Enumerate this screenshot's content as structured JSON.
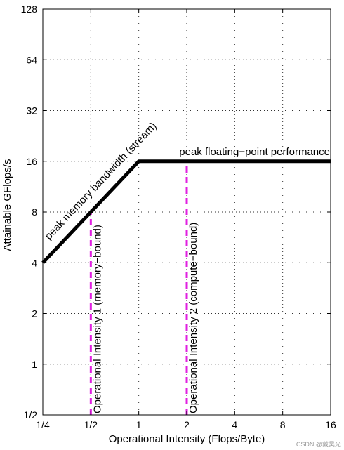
{
  "chart_data": {
    "type": "line",
    "title": "",
    "xlabel": "Operational Intensity (Flops/Byte)",
    "ylabel": "Attainable GFlops/s",
    "xscale": "log2",
    "yscale": "log2",
    "xlim": [
      0.25,
      16
    ],
    "ylim": [
      0.5,
      128
    ],
    "grid": true,
    "x_ticks": [
      {
        "value": 0.25,
        "label": "1/4"
      },
      {
        "value": 0.5,
        "label": "1/2"
      },
      {
        "value": 1,
        "label": "1"
      },
      {
        "value": 2,
        "label": "2"
      },
      {
        "value": 4,
        "label": "4"
      },
      {
        "value": 8,
        "label": "8"
      },
      {
        "value": 16,
        "label": "16"
      }
    ],
    "y_ticks": [
      {
        "value": 0.5,
        "label": "1/2"
      },
      {
        "value": 1,
        "label": "1"
      },
      {
        "value": 2,
        "label": "2"
      },
      {
        "value": 4,
        "label": "4"
      },
      {
        "value": 8,
        "label": "8"
      },
      {
        "value": 16,
        "label": "16"
      },
      {
        "value": 32,
        "label": "32"
      },
      {
        "value": 64,
        "label": "64"
      },
      {
        "value": 128,
        "label": "128"
      }
    ],
    "series": [
      {
        "points": [
          [
            0.25,
            4
          ],
          [
            1,
            16
          ],
          [
            16,
            16
          ]
        ],
        "color": "#000000"
      }
    ],
    "vertical_markers": [
      {
        "x": 0.5,
        "y_top": 8,
        "label": "Operational Intensity 1 (memory−bound)",
        "color": "#e020e0"
      },
      {
        "x": 2,
        "y_top": 16,
        "label": "Operational Intensity 2 (compute−bound)",
        "color": "#e020e0"
      }
    ],
    "annotations": {
      "roof_sloped": "peak memory bandwidth (stream)",
      "roof_flat": "peak floating−point performance"
    }
  },
  "watermark": "CSDN @戴昊光"
}
